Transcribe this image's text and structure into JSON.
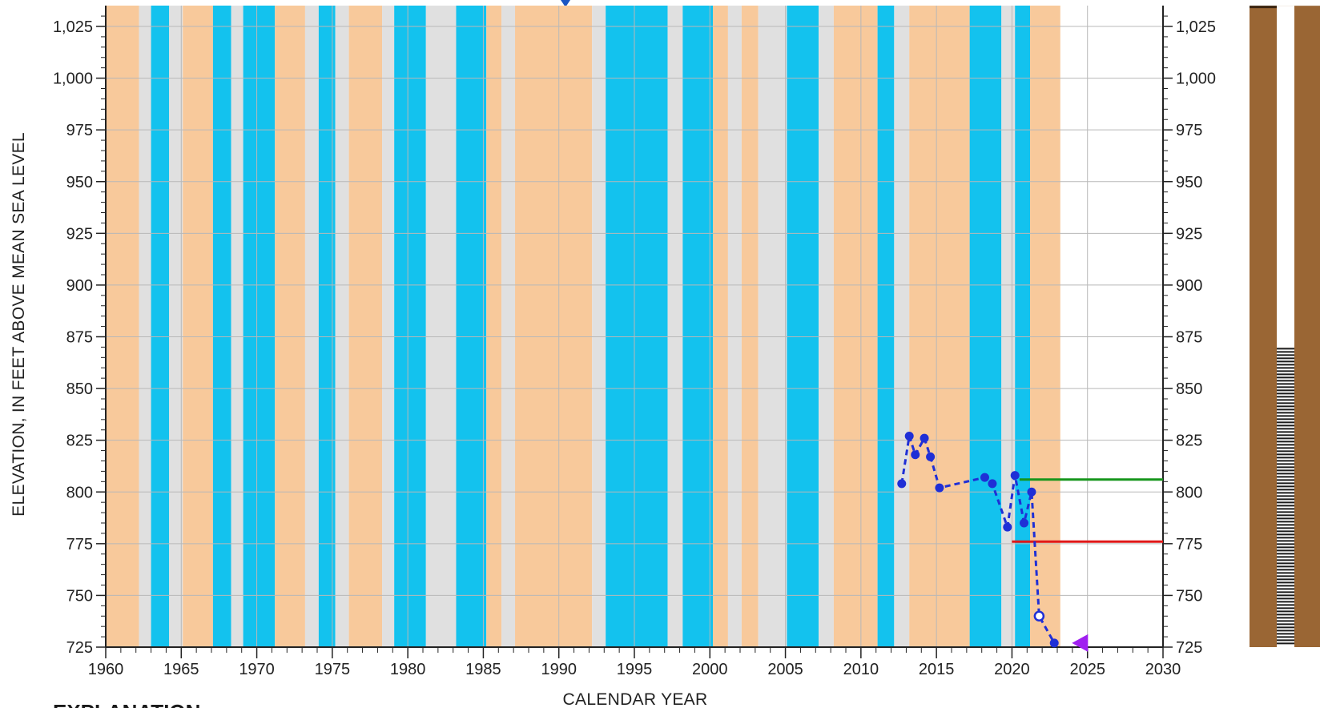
{
  "chart_data": {
    "type": "line",
    "xlabel": "CALENDAR YEAR",
    "ylabel": "ELEVATION, IN FEET ABOVE MEAN SEA LEVEL",
    "xlim": [
      1960,
      2030
    ],
    "ylim": [
      725,
      1035
    ],
    "x_ticks": [
      1960,
      1965,
      1970,
      1975,
      1980,
      1985,
      1990,
      1995,
      2000,
      2005,
      2010,
      2015,
      2020,
      2025,
      2030
    ],
    "y_ticks": [
      725,
      750,
      775,
      800,
      825,
      850,
      875,
      900,
      925,
      950,
      975,
      1000,
      1025
    ],
    "y_tick_labels": [
      "725",
      "750",
      "775",
      "800",
      "825",
      "850",
      "875",
      "900",
      "925",
      "950",
      "975",
      "1,000",
      "1,025"
    ],
    "grid": true,
    "background_bands": [
      {
        "start": 1960.0,
        "end": 1962.2,
        "kind": "dry"
      },
      {
        "start": 1962.2,
        "end": 1963.0,
        "kind": "neutral"
      },
      {
        "start": 1963.0,
        "end": 1964.2,
        "kind": "wet"
      },
      {
        "start": 1964.2,
        "end": 1965.1,
        "kind": "neutral"
      },
      {
        "start": 1965.1,
        "end": 1967.1,
        "kind": "dry"
      },
      {
        "start": 1967.1,
        "end": 1968.3,
        "kind": "wet"
      },
      {
        "start": 1968.3,
        "end": 1969.1,
        "kind": "neutral"
      },
      {
        "start": 1969.1,
        "end": 1971.2,
        "kind": "wet"
      },
      {
        "start": 1971.2,
        "end": 1973.2,
        "kind": "dry"
      },
      {
        "start": 1973.2,
        "end": 1974.1,
        "kind": "neutral"
      },
      {
        "start": 1974.1,
        "end": 1975.2,
        "kind": "wet"
      },
      {
        "start": 1975.2,
        "end": 1976.1,
        "kind": "neutral"
      },
      {
        "start": 1976.1,
        "end": 1978.3,
        "kind": "dry"
      },
      {
        "start": 1978.3,
        "end": 1979.1,
        "kind": "neutral"
      },
      {
        "start": 1979.1,
        "end": 1981.2,
        "kind": "wet"
      },
      {
        "start": 1981.2,
        "end": 1983.2,
        "kind": "neutral"
      },
      {
        "start": 1983.2,
        "end": 1985.2,
        "kind": "wet"
      },
      {
        "start": 1985.2,
        "end": 1986.2,
        "kind": "dry"
      },
      {
        "start": 1986.2,
        "end": 1987.1,
        "kind": "neutral"
      },
      {
        "start": 1987.1,
        "end": 1992.2,
        "kind": "dry"
      },
      {
        "start": 1992.2,
        "end": 1993.1,
        "kind": "neutral"
      },
      {
        "start": 1993.1,
        "end": 1997.2,
        "kind": "wet"
      },
      {
        "start": 1997.2,
        "end": 1998.2,
        "kind": "neutral"
      },
      {
        "start": 1998.2,
        "end": 2000.2,
        "kind": "wet"
      },
      {
        "start": 2000.2,
        "end": 2001.2,
        "kind": "dry"
      },
      {
        "start": 2001.2,
        "end": 2002.1,
        "kind": "neutral"
      },
      {
        "start": 2002.1,
        "end": 2003.2,
        "kind": "dry"
      },
      {
        "start": 2003.2,
        "end": 2005.1,
        "kind": "neutral"
      },
      {
        "start": 2005.1,
        "end": 2007.2,
        "kind": "wet"
      },
      {
        "start": 2007.2,
        "end": 2008.2,
        "kind": "neutral"
      },
      {
        "start": 2008.2,
        "end": 2011.1,
        "kind": "dry"
      },
      {
        "start": 2011.1,
        "end": 2012.2,
        "kind": "wet"
      },
      {
        "start": 2012.2,
        "end": 2013.2,
        "kind": "neutral"
      },
      {
        "start": 2013.2,
        "end": 2017.2,
        "kind": "dry"
      },
      {
        "start": 2017.2,
        "end": 2019.3,
        "kind": "wet"
      },
      {
        "start": 2019.3,
        "end": 2020.2,
        "kind": "neutral"
      },
      {
        "start": 2020.2,
        "end": 2021.2,
        "kind": "wet"
      },
      {
        "start": 2021.2,
        "end": 2023.2,
        "kind": "dry"
      }
    ],
    "band_colors": {
      "dry": "#f8c99b",
      "wet": "#13c2ee",
      "neutral": "#e0e0e0"
    },
    "series": [
      {
        "x": [
          2012.7,
          2013.2,
          2013.6,
          2014.2,
          2014.6,
          2015.2,
          2018.2,
          2018.7,
          2019.7,
          2020.2,
          2020.8,
          2021.3,
          2022.8
        ],
        "y": [
          804,
          827,
          818,
          826,
          817,
          802,
          807,
          804,
          783,
          808,
          785,
          800,
          727
        ],
        "color": "#1f2fd6",
        "line_style": "dashed",
        "marker": "filled-circle"
      }
    ],
    "open_points": [
      {
        "x": 2021.8,
        "y": 740
      }
    ],
    "reference_lines": [
      {
        "y": 806,
        "x_start": 2020.5,
        "x_end": 2030,
        "color": "#16951c"
      },
      {
        "y": 776,
        "x_start": 2020.0,
        "x_end": 2030,
        "color": "#e01818"
      }
    ],
    "marker_triangle": {
      "x": 2024.5,
      "y": 727,
      "color": "#a020f0"
    },
    "well_column": {
      "casing_top": 1035,
      "screen_top": 870,
      "bottom": 725,
      "outer_color": "#9a6634",
      "casing_color": "#ffffff",
      "screen_color": "#1a1a1a"
    },
    "colors": {
      "series": "#1f2fd6",
      "green_line": "#16951c",
      "red_line": "#e01818",
      "triangle": "#a020f0",
      "grid": "#b8b8b8",
      "axis": "#222222",
      "cut_title": "#1a56c4"
    }
  },
  "footer": {
    "explanation_text": "EXPLANATION"
  }
}
